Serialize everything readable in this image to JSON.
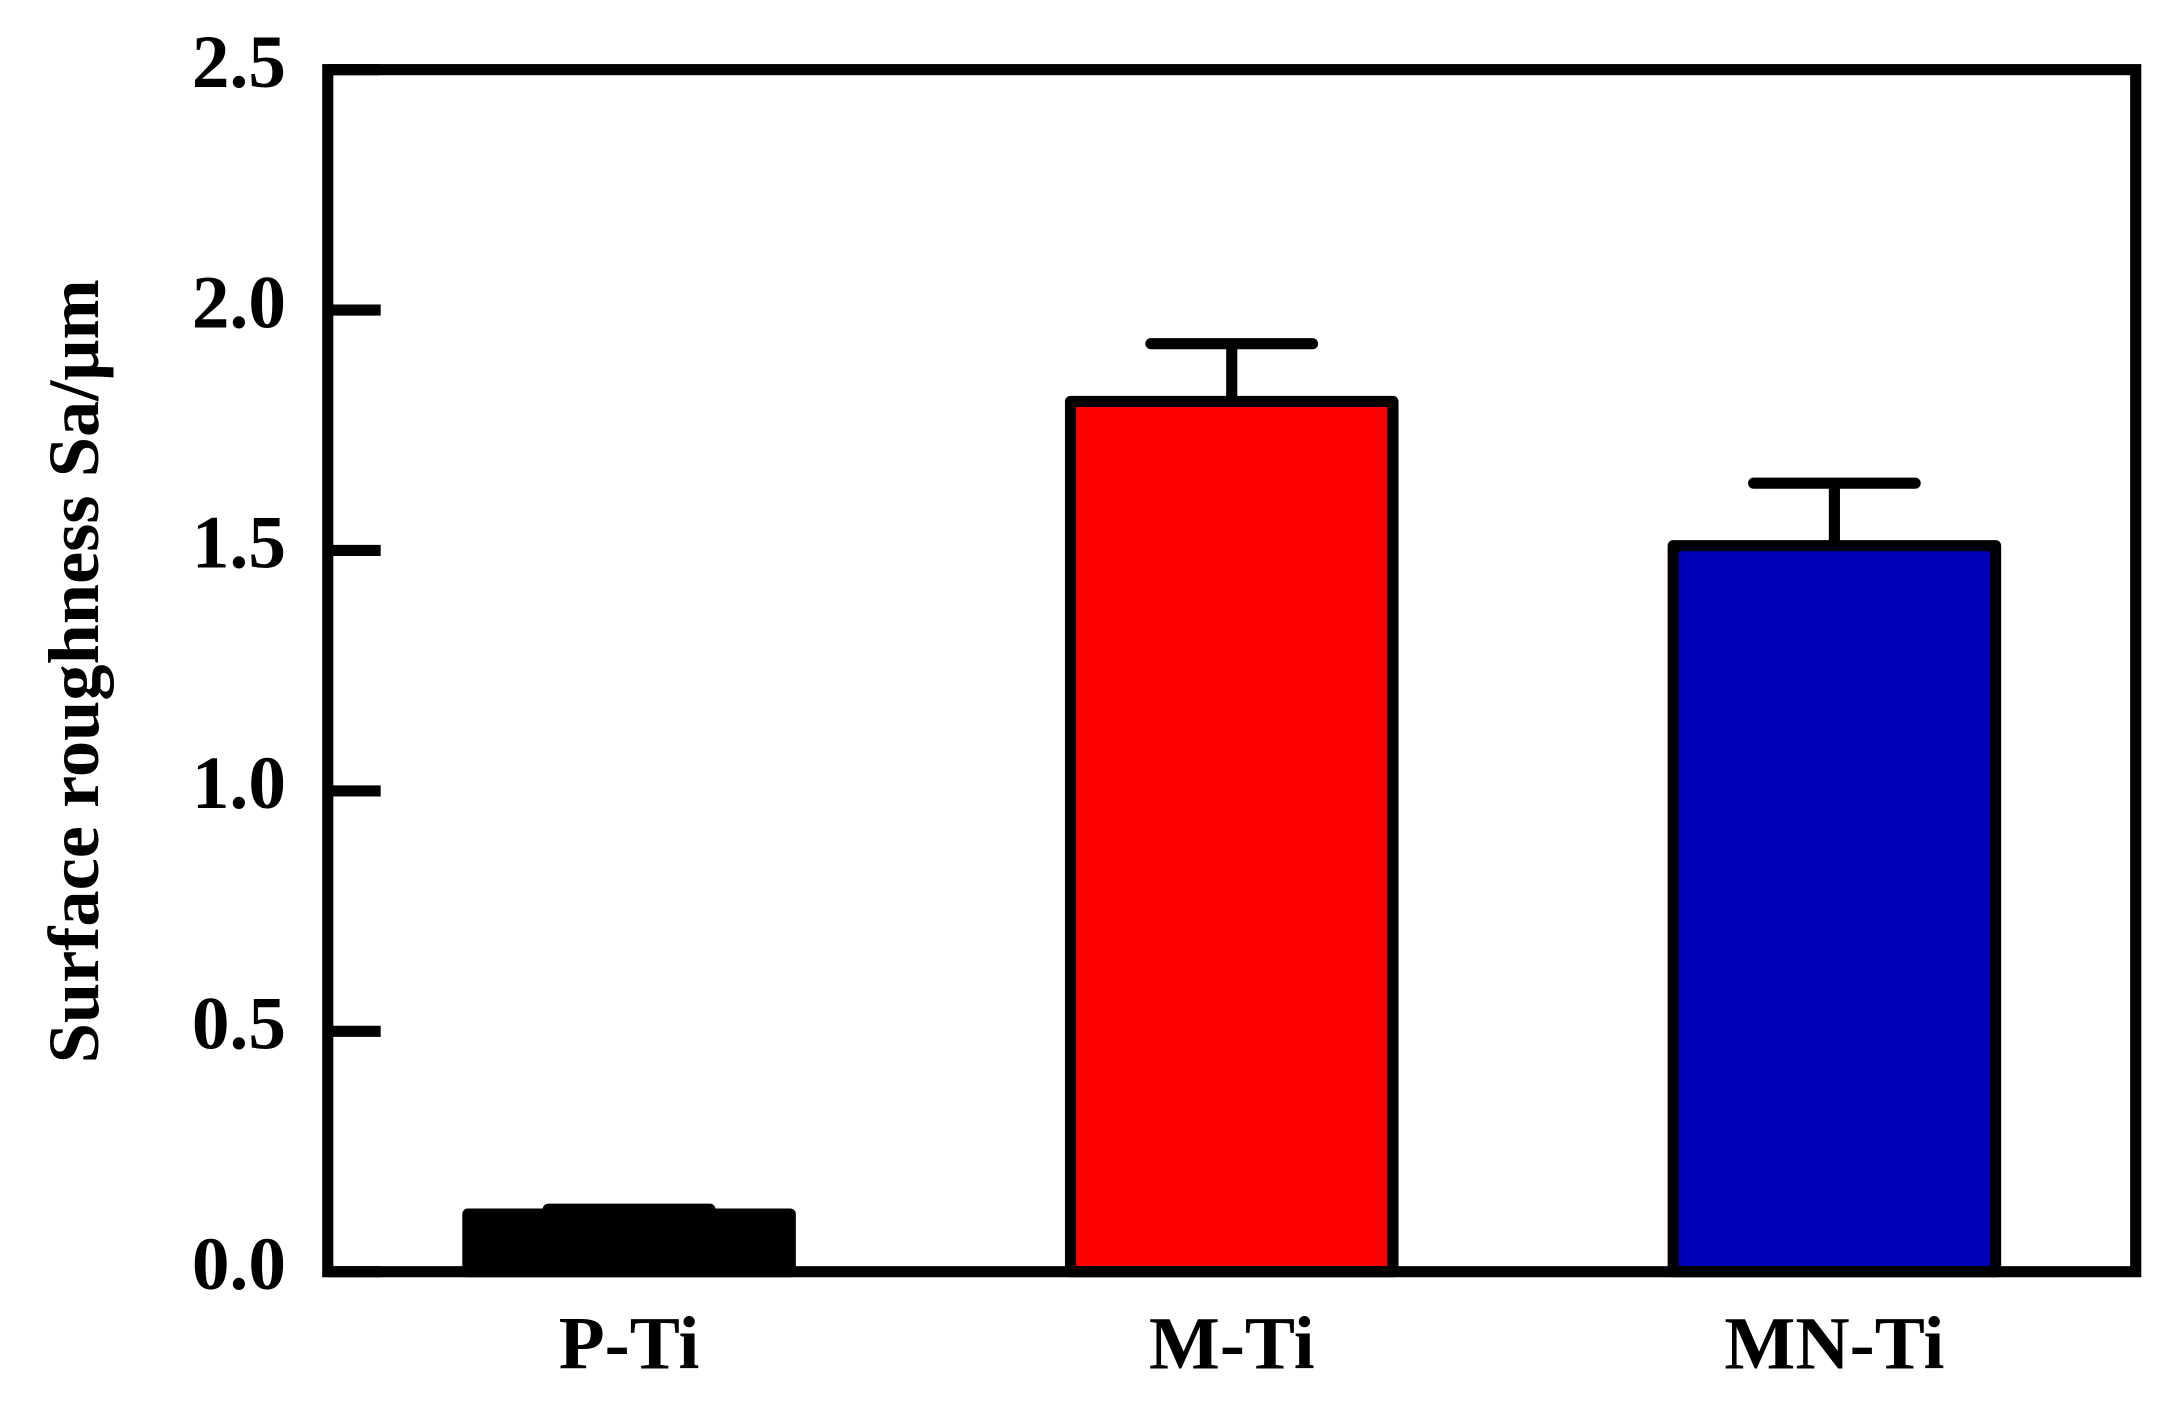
{
  "chart_data": {
    "type": "bar",
    "ylabel": "Surface roughness Sa/μm",
    "categories": [
      "P-Ti",
      "M-Ti",
      "MN-Ti"
    ],
    "values": [
      0.12,
      1.81,
      1.51
    ],
    "errors": [
      0.01,
      0.12,
      0.13
    ],
    "colors": [
      "#000000",
      "#ff0000",
      "#0000bb"
    ],
    "ylim": [
      0,
      2.5
    ],
    "yticks": [
      {
        "value": 0,
        "label": "0.0"
      },
      0.5,
      {
        "value": 1,
        "label": "1.0"
      },
      1.5,
      {
        "value": 2,
        "label": "2.0"
      },
      2.5
    ],
    "grid": false
  }
}
